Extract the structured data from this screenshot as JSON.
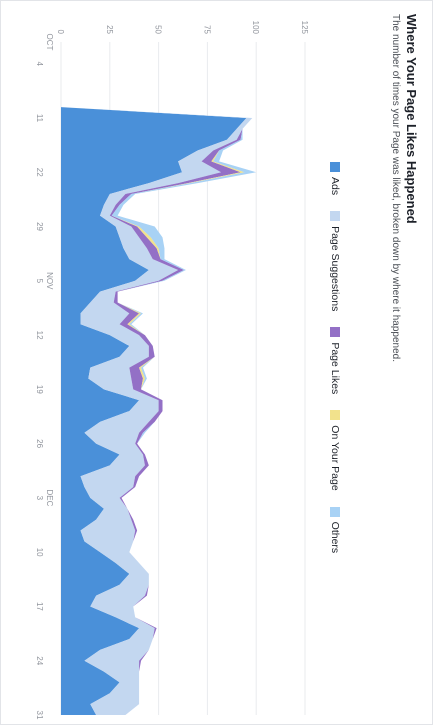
{
  "header": {
    "title": "Where Your Page Likes Happened",
    "subtitle": "The number of times your Page was liked, broken down by where it happened."
  },
  "chart_data": {
    "type": "area",
    "stacked": true,
    "title": "Where Your Page Likes Happened",
    "subtitle": "The number of times your Page was liked, broken down by where it happened.",
    "xlabel": "",
    "ylabel": "",
    "ylim": [
      0,
      125
    ],
    "y_ticks": [
      0,
      25,
      50,
      75,
      100,
      125
    ],
    "y_tick_labels": [
      "0",
      "25",
      "50",
      "75",
      "100",
      "125"
    ],
    "grid": true,
    "legend": "top",
    "x_tick_labels": [
      {
        "i": 0,
        "month": "OCT",
        "day": ""
      },
      {
        "i": 2,
        "month": "",
        "day": "4"
      },
      {
        "i": 7,
        "month": "",
        "day": "11"
      },
      {
        "i": 12,
        "month": "",
        "day": "22"
      },
      {
        "i": 17,
        "month": "",
        "day": "29"
      },
      {
        "i": 22,
        "month": "NOV",
        "day": "5"
      },
      {
        "i": 27,
        "month": "",
        "day": "12"
      },
      {
        "i": 32,
        "month": "",
        "day": "19"
      },
      {
        "i": 37,
        "month": "",
        "day": "26"
      },
      {
        "i": 42,
        "month": "DEC",
        "day": "3"
      },
      {
        "i": 47,
        "month": "",
        "day": "10"
      },
      {
        "i": 52,
        "month": "",
        "day": "17"
      },
      {
        "i": 57,
        "month": "",
        "day": "24"
      },
      {
        "i": 62,
        "month": "",
        "day": "31"
      }
    ],
    "series": [
      {
        "name": "Ads",
        "color": "#4a90d9",
        "values": [
          0,
          0,
          0,
          0,
          0,
          0,
          0,
          95,
          90,
          85,
          70,
          60,
          62,
          45,
          25,
          22,
          20,
          28,
          30,
          32,
          35,
          45,
          38,
          20,
          15,
          10,
          10,
          25,
          35,
          30,
          15,
          14,
          22,
          40,
          35,
          20,
          12,
          18,
          30,
          25,
          10,
          12,
          15,
          22,
          18,
          10,
          12,
          20,
          28,
          35,
          30,
          18,
          15,
          28,
          40,
          35,
          20,
          12,
          22,
          30,
          25,
          15,
          18
        ]
      },
      {
        "name": "Page Suggestions",
        "color": "#c3d7f0",
        "values": [
          0,
          0,
          0,
          0,
          0,
          0,
          0,
          3,
          3,
          5,
          8,
          12,
          20,
          15,
          8,
          6,
          5,
          8,
          10,
          12,
          12,
          15,
          12,
          8,
          12,
          25,
          20,
          15,
          10,
          15,
          20,
          22,
          15,
          10,
          15,
          25,
          28,
          20,
          12,
          18,
          28,
          25,
          15,
          12,
          18,
          28,
          25,
          15,
          12,
          10,
          15,
          25,
          22,
          10,
          8,
          12,
          25,
          28,
          18,
          10,
          15,
          25,
          15
        ]
      },
      {
        "name": "Page Likes",
        "color": "#9370c6",
        "values": [
          0,
          0,
          0,
          0,
          0,
          0,
          0,
          0,
          0,
          2,
          3,
          5,
          10,
          5,
          3,
          2,
          1,
          3,
          4,
          5,
          4,
          3,
          2,
          1,
          2,
          5,
          4,
          3,
          2,
          3,
          5,
          6,
          4,
          2,
          2,
          3,
          2,
          1,
          1,
          2,
          2,
          1,
          1,
          0,
          1,
          1,
          0,
          0,
          0,
          0,
          0,
          1,
          0,
          0,
          1,
          0,
          0,
          1,
          0,
          0,
          0,
          0,
          0
        ]
      },
      {
        "name": "On Your Page",
        "color": "#f2e28c",
        "values": [
          0,
          0,
          0,
          0,
          0,
          0,
          0,
          0,
          0,
          0,
          0,
          1,
          2,
          1,
          0,
          0,
          0,
          1,
          2,
          1,
          0,
          0,
          0,
          0,
          0,
          1,
          1,
          0,
          0,
          0,
          1,
          1,
          0,
          0,
          0,
          0,
          0,
          0,
          0,
          0,
          0,
          0,
          0,
          0,
          0,
          0,
          0,
          0,
          0,
          0,
          0,
          0,
          0,
          0,
          0,
          0,
          0,
          0,
          0,
          0,
          0,
          0,
          0
        ]
      },
      {
        "name": "Others",
        "color": "#a8d2f5",
        "values": [
          0,
          0,
          0,
          0,
          0,
          0,
          0,
          0,
          0,
          1,
          2,
          3,
          6,
          4,
          2,
          2,
          3,
          8,
          6,
          3,
          2,
          1,
          1,
          0,
          0,
          1,
          1,
          0,
          0,
          0,
          1,
          1,
          0,
          0,
          0,
          0,
          1,
          0,
          0,
          0,
          0,
          0,
          0,
          0,
          0,
          0,
          0,
          0,
          0,
          0,
          0,
          0,
          0,
          0,
          0,
          0,
          0,
          0,
          0,
          0,
          0,
          0,
          0
        ]
      }
    ]
  }
}
